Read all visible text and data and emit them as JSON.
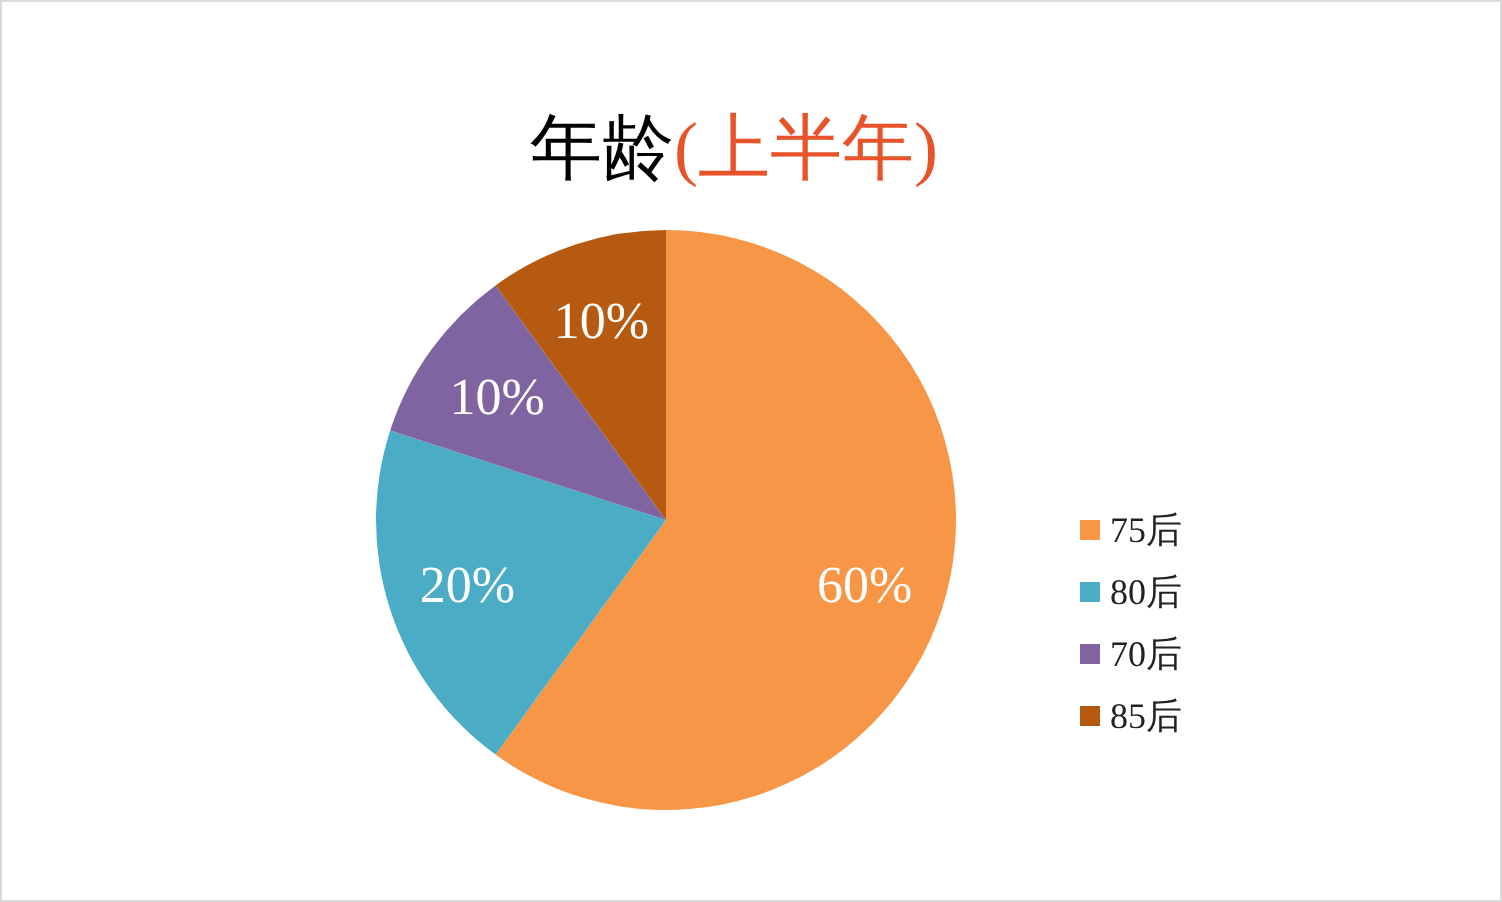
{
  "chart_data": {
    "type": "pie",
    "title": "年龄",
    "subtitle": "(上半年)",
    "categories": [
      "75后",
      "80后",
      "70后",
      "85后"
    ],
    "values": [
      60,
      20,
      10,
      10
    ],
    "colors": [
      "#f79646",
      "#4bacc6",
      "#8064a2",
      "#b65a12"
    ],
    "value_labels": [
      "60%",
      "20%",
      "10%",
      "10%"
    ],
    "legend": "right"
  }
}
